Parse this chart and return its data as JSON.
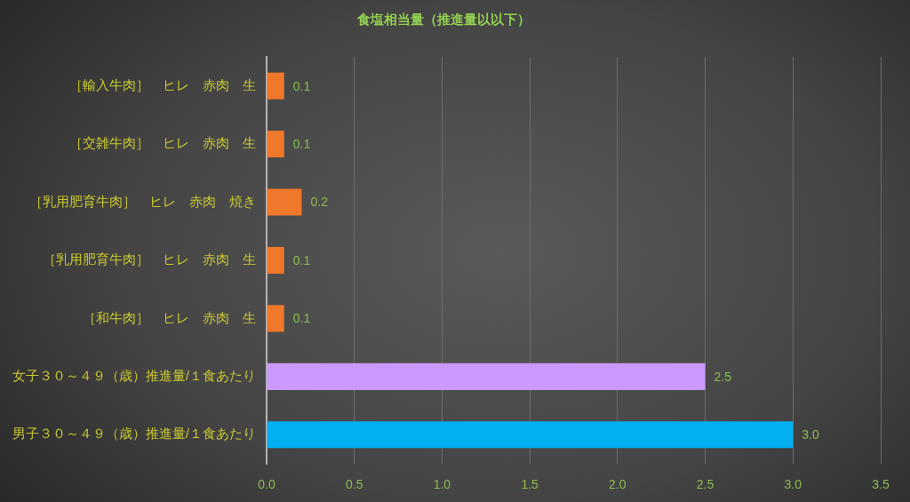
{
  "chart_data": {
    "type": "bar",
    "orientation": "horizontal",
    "title": "食塩相当量（推進量以以下）",
    "categories": [
      "［輸入牛肉］　ヒレ　赤肉　生",
      "［交雑牛肉］　ヒレ　赤肉　生",
      "［乳用肥育牛肉］　ヒレ　赤肉　焼き",
      "［乳用肥育牛肉］　ヒレ　赤肉　生",
      "［和牛肉］　ヒレ　赤肉　生",
      "女子３０～４９（歳）推進量/１食あたり",
      "男子３０～４９（歳）推進量/１食あたり"
    ],
    "values": [
      0.1,
      0.1,
      0.2,
      0.1,
      0.1,
      2.5,
      3.0
    ],
    "colors": [
      "#f0782a",
      "#f0782a",
      "#f0782a",
      "#f0782a",
      "#f0782a",
      "#cc99ff",
      "#00b0f0"
    ],
    "value_labels": [
      "0.1",
      "0.1",
      "0.2",
      "0.1",
      "0.1",
      "2.5",
      "3.0"
    ],
    "xlim": [
      0,
      3.5
    ],
    "xticks": [
      {
        "value": 0,
        "label": "0.0"
      },
      {
        "value": 0.5,
        "label": "0.5"
      },
      {
        "value": 1,
        "label": "1.0"
      },
      {
        "value": 1.5,
        "label": "1.5"
      },
      {
        "value": 2,
        "label": "2.0"
      },
      {
        "value": 2.5,
        "label": "2.5"
      },
      {
        "value": 3,
        "label": "3.0"
      },
      {
        "value": 3.5,
        "label": "3.5"
      }
    ],
    "grid": "x"
  }
}
